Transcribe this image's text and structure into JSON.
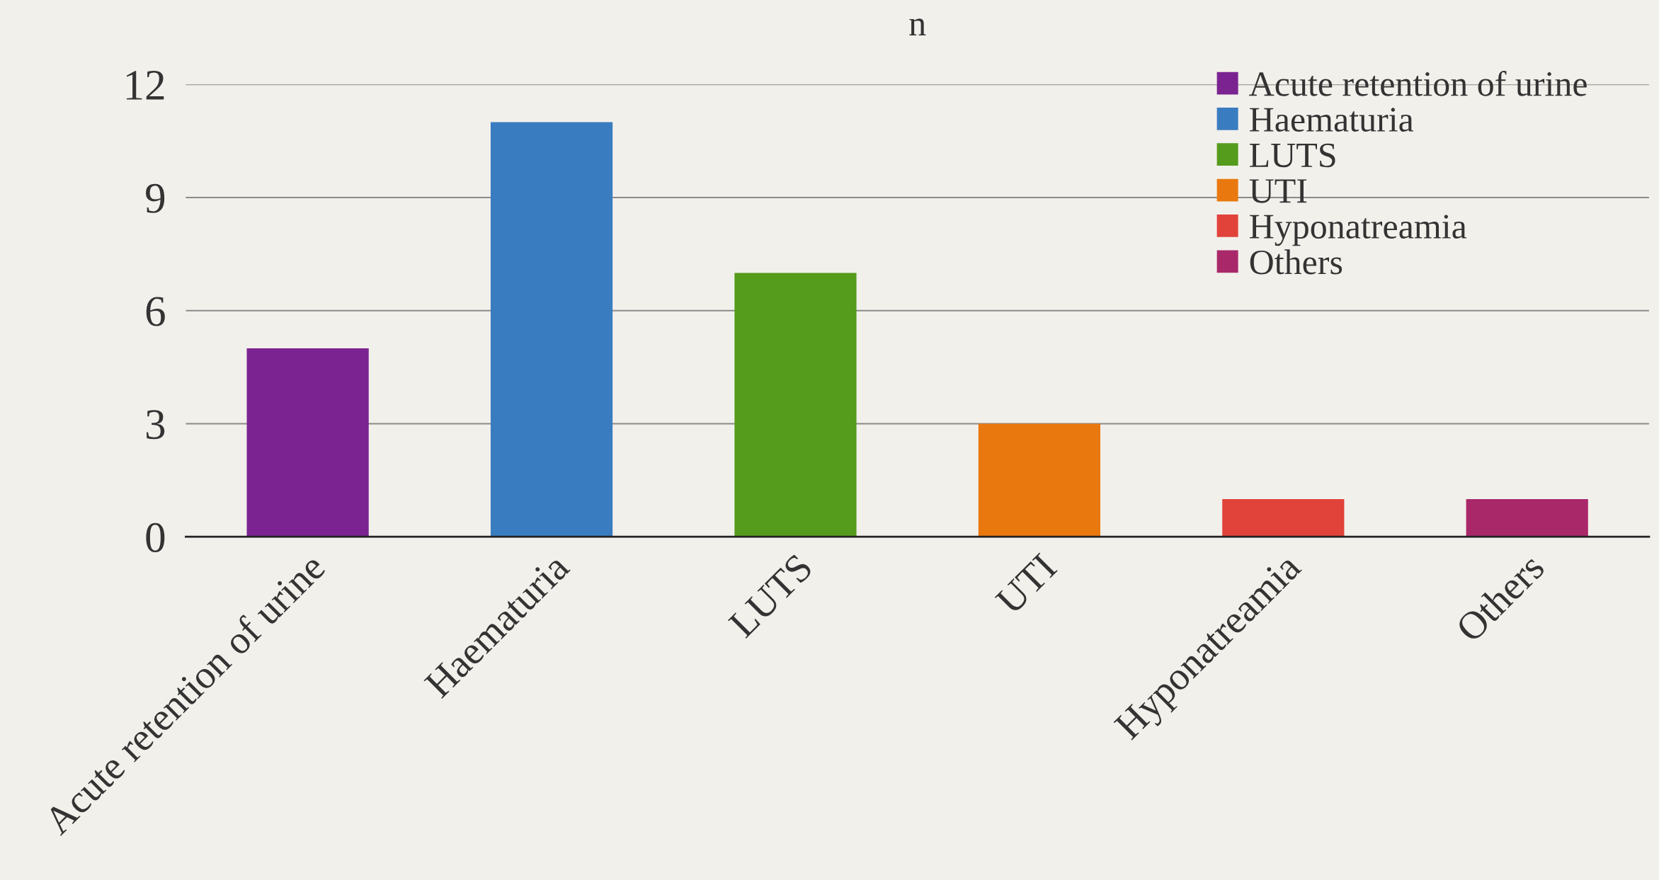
{
  "chart_data": {
    "type": "bar",
    "title": "n",
    "categories": [
      "Acute retention of urine",
      "Haematuria",
      "LUTS",
      "UTI",
      "Hyponatreamia",
      "Others"
    ],
    "series": [
      {
        "name": "Acute retention of urine",
        "color": "#7b2491",
        "values": [
          5,
          null,
          null,
          null,
          null,
          null
        ]
      },
      {
        "name": "Haematuria",
        "color": "#3a7cc0",
        "values": [
          null,
          11,
          null,
          null,
          null,
          null
        ]
      },
      {
        "name": "LUTS",
        "color": "#559b1c",
        "values": [
          null,
          null,
          7,
          null,
          null,
          null
        ]
      },
      {
        "name": "UTI",
        "color": "#e9790f",
        "values": [
          null,
          null,
          null,
          3,
          null,
          null
        ]
      },
      {
        "name": "Hyponatreamia",
        "color": "#e1423a",
        "values": [
          null,
          null,
          null,
          null,
          1,
          null
        ]
      },
      {
        "name": "Others",
        "color": "#a9286a",
        "values": [
          null,
          null,
          null,
          null,
          null,
          1
        ]
      }
    ],
    "ylim": [
      0,
      12
    ],
    "yticks": [
      0,
      3,
      6,
      9,
      12
    ],
    "grid": "y",
    "legend": "top right"
  }
}
